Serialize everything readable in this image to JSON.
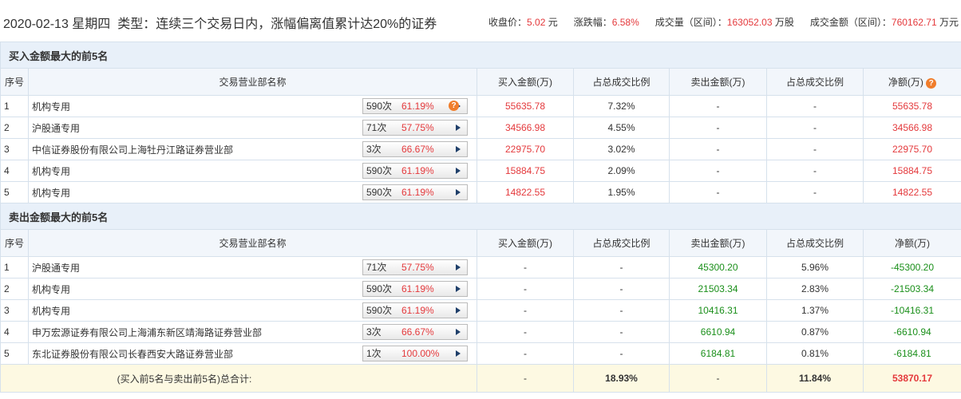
{
  "header": {
    "date": "2020-02-13",
    "weekday": "星期四",
    "type": "类型：连续三个交易日内，涨幅偏离值累计达20%的证券",
    "stats": [
      {
        "label": "收盘价：",
        "value": "5.02",
        "unit": "元"
      },
      {
        "label": "涨跌幅：",
        "value": "6.58%",
        "unit": ""
      },
      {
        "label": "成交量（区间）：",
        "value": "163052.03",
        "unit": "万股"
      },
      {
        "label": "成交金额（区间）：",
        "value": "760162.71",
        "unit": "万元"
      }
    ]
  },
  "columns": [
    "序号",
    "交易营业部名称",
    "买入金额(万)",
    "占总成交比例",
    "卖出金额(万)",
    "占总成交比例",
    "净额(万)"
  ],
  "buy_top5": {
    "title": "买入金额最大的前5名",
    "rows": [
      {
        "rank": "1",
        "name": "机构专用",
        "times": "590次",
        "win_rate": "61.19%",
        "buy": "55635.78",
        "buy_ratio": "7.32%",
        "sell": "-",
        "sell_ratio": "-",
        "net": "55635.78"
      },
      {
        "rank": "2",
        "name": "沪股通专用",
        "times": "71次",
        "win_rate": "57.75%",
        "buy": "34566.98",
        "buy_ratio": "4.55%",
        "sell": "-",
        "sell_ratio": "-",
        "net": "34566.98"
      },
      {
        "rank": "3",
        "name": "中信证券股份有限公司上海牡丹江路证券营业部",
        "times": "3次",
        "win_rate": "66.67%",
        "buy": "22975.70",
        "buy_ratio": "3.02%",
        "sell": "-",
        "sell_ratio": "-",
        "net": "22975.70"
      },
      {
        "rank": "4",
        "name": "机构专用",
        "times": "590次",
        "win_rate": "61.19%",
        "buy": "15884.75",
        "buy_ratio": "2.09%",
        "sell": "-",
        "sell_ratio": "-",
        "net": "15884.75"
      },
      {
        "rank": "5",
        "name": "机构专用",
        "times": "590次",
        "win_rate": "61.19%",
        "buy": "14822.55",
        "buy_ratio": "1.95%",
        "sell": "-",
        "sell_ratio": "-",
        "net": "14822.55"
      }
    ]
  },
  "sell_top5": {
    "title": "卖出金额最大的前5名",
    "rows": [
      {
        "rank": "1",
        "name": "沪股通专用",
        "times": "71次",
        "win_rate": "57.75%",
        "buy": "-",
        "buy_ratio": "-",
        "sell": "45300.20",
        "sell_ratio": "5.96%",
        "net": "-45300.20"
      },
      {
        "rank": "2",
        "name": "机构专用",
        "times": "590次",
        "win_rate": "61.19%",
        "buy": "-",
        "buy_ratio": "-",
        "sell": "21503.34",
        "sell_ratio": "2.83%",
        "net": "-21503.34"
      },
      {
        "rank": "3",
        "name": "机构专用",
        "times": "590次",
        "win_rate": "61.19%",
        "buy": "-",
        "buy_ratio": "-",
        "sell": "10416.31",
        "sell_ratio": "1.37%",
        "net": "-10416.31"
      },
      {
        "rank": "4",
        "name": "申万宏源证券有限公司上海浦东新区靖海路证券营业部",
        "times": "3次",
        "win_rate": "66.67%",
        "buy": "-",
        "buy_ratio": "-",
        "sell": "6610.94",
        "sell_ratio": "0.87%",
        "net": "-6610.94"
      },
      {
        "rank": "5",
        "name": "东北证券股份有限公司长春西安大路证券营业部",
        "times": "1次",
        "win_rate": "100.00%",
        "buy": "-",
        "buy_ratio": "-",
        "sell": "6184.81",
        "sell_ratio": "0.81%",
        "net": "-6184.81"
      }
    ]
  },
  "total": {
    "label": "(买入前5名与卖出前5名)总合计:",
    "buy": "-",
    "buy_ratio": "18.93%",
    "sell": "-",
    "sell_ratio": "11.84%",
    "net": "53870.17"
  }
}
